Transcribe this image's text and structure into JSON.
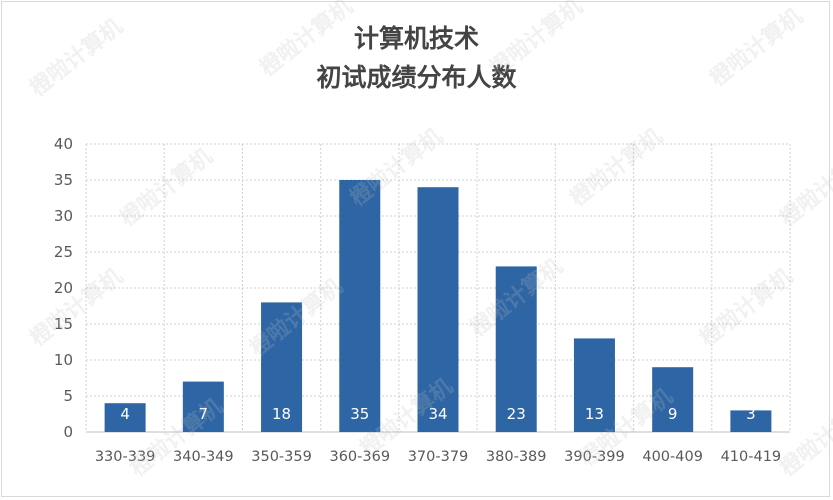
{
  "watermark": "橙啦计算机",
  "chart_data": {
    "type": "bar",
    "title": "计算机技术",
    "subtitle": "初试成绩分布人数",
    "categories": [
      "330-339",
      "340-349",
      "350-359",
      "360-369",
      "370-379",
      "380-389",
      "390-399",
      "400-409",
      "410-419"
    ],
    "values": [
      4,
      7,
      18,
      35,
      34,
      23,
      13,
      9,
      3
    ],
    "ylim": [
      0,
      40
    ],
    "yticks": [
      "0",
      "5",
      "10",
      "15",
      "20",
      "25",
      "30",
      "35",
      "40"
    ],
    "grid": true,
    "bar_color": "#2e65a4",
    "label_color": "#ffffff"
  }
}
